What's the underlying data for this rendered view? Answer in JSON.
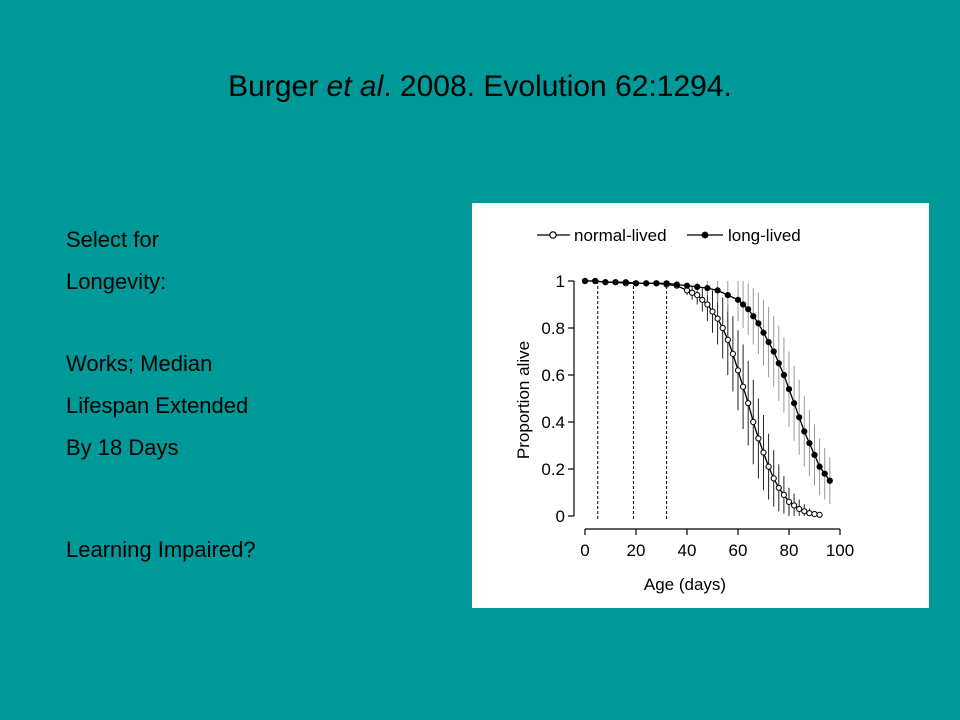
{
  "slide": {
    "background": "#009999",
    "title_pre": "Burger ",
    "title_em": "et al",
    "title_post": ". 2008. Evolution 62:1294.",
    "block1": [
      "Select for",
      "Longevity:"
    ],
    "block2": [
      "Works; Median",
      "Lifespan Extended",
      "By 18 Days"
    ],
    "block3": [
      "Learning Impaired?"
    ]
  },
  "chart_data": {
    "type": "line",
    "xlabel": "Age (days)",
    "ylabel": "Proportion alive",
    "xlim": [
      0,
      100
    ],
    "ylim": [
      0,
      1
    ],
    "xticks": [
      0,
      20,
      40,
      60,
      80,
      100
    ],
    "yticks": [
      0,
      0.2,
      0.4,
      0.6,
      0.8,
      1
    ],
    "legend_position": "top",
    "dashed_lines_x": [
      5,
      19,
      32
    ],
    "series": [
      {
        "name": "normal-lived",
        "marker": "open-circle",
        "x": [
          0,
          4,
          8,
          12,
          16,
          20,
          24,
          28,
          32,
          36,
          40,
          42,
          44,
          46,
          48,
          50,
          52,
          54,
          56,
          58,
          60,
          62,
          64,
          66,
          68,
          70,
          72,
          74,
          76,
          78,
          80,
          82,
          84,
          86,
          88,
          90,
          92
        ],
        "y": [
          1,
          1,
          0.995,
          0.995,
          0.99,
          0.99,
          0.99,
          0.99,
          0.985,
          0.98,
          0.96,
          0.95,
          0.94,
          0.92,
          0.9,
          0.87,
          0.84,
          0.8,
          0.75,
          0.69,
          0.62,
          0.55,
          0.48,
          0.4,
          0.33,
          0.27,
          0.21,
          0.16,
          0.12,
          0.09,
          0.06,
          0.045,
          0.03,
          0.02,
          0.012,
          0.008,
          0.005
        ],
        "err": [
          0,
          0,
          0,
          0,
          0,
          0,
          0,
          0,
          0,
          0,
          0.02,
          0.03,
          0.04,
          0.05,
          0.07,
          0.09,
          0.11,
          0.13,
          0.15,
          0.16,
          0.17,
          0.18,
          0.18,
          0.18,
          0.17,
          0.16,
          0.14,
          0.12,
          0.1,
          0.08,
          0.06,
          0.05,
          0.04,
          0.03,
          0.02,
          0.01,
          0.01
        ]
      },
      {
        "name": "long-lived",
        "marker": "filled-circle",
        "x": [
          0,
          4,
          8,
          12,
          16,
          20,
          24,
          28,
          32,
          36,
          40,
          44,
          48,
          52,
          56,
          60,
          62,
          64,
          66,
          68,
          70,
          72,
          74,
          76,
          78,
          80,
          82,
          84,
          86,
          88,
          90,
          92,
          94,
          96
        ],
        "y": [
          1,
          1,
          0.995,
          0.995,
          0.995,
          0.99,
          0.99,
          0.99,
          0.99,
          0.985,
          0.98,
          0.975,
          0.97,
          0.96,
          0.94,
          0.92,
          0.9,
          0.88,
          0.85,
          0.82,
          0.78,
          0.74,
          0.7,
          0.65,
          0.6,
          0.54,
          0.48,
          0.42,
          0.36,
          0.31,
          0.26,
          0.21,
          0.18,
          0.15
        ],
        "err": [
          0,
          0,
          0,
          0,
          0,
          0,
          0,
          0,
          0,
          0,
          0.01,
          0.02,
          0.03,
          0.05,
          0.07,
          0.09,
          0.1,
          0.11,
          0.12,
          0.13,
          0.14,
          0.15,
          0.15,
          0.16,
          0.16,
          0.16,
          0.16,
          0.16,
          0.15,
          0.14,
          0.13,
          0.12,
          0.11,
          0.1
        ]
      }
    ]
  }
}
